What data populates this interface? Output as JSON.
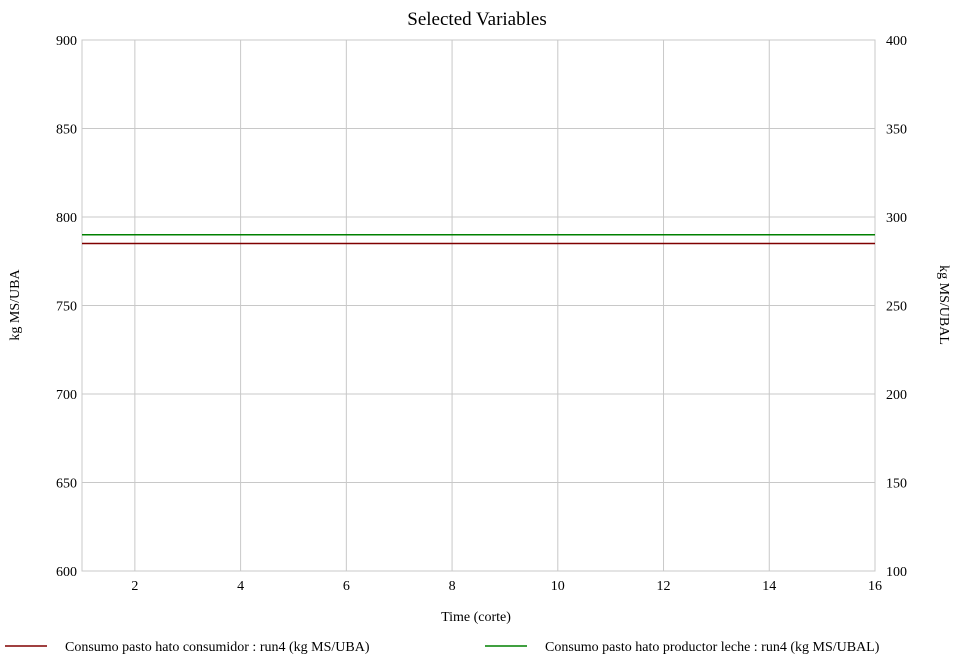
{
  "chart_data": {
    "type": "line",
    "title": "Selected Variables",
    "xlabel": "Time (corte)",
    "ylabel_left": "kg MS/UBA",
    "ylabel_right": "kg MS/UBAL",
    "xlim": [
      1,
      16
    ],
    "ylim_left": [
      600,
      900
    ],
    "ylim_right": [
      100,
      400
    ],
    "x_ticks": [
      2,
      4,
      6,
      8,
      10,
      12,
      14,
      16
    ],
    "y_ticks_left": [
      600,
      650,
      700,
      750,
      800,
      850,
      900
    ],
    "y_ticks_right": [
      100,
      150,
      200,
      250,
      300,
      350,
      400
    ],
    "grid": true,
    "legend_position": "bottom",
    "series": [
      {
        "name": "Consumo pasto hato consumidor : run4 (kg MS/UBA)",
        "axis": "left",
        "color": "#800000",
        "x": [
          1,
          16
        ],
        "y": [
          785,
          785
        ]
      },
      {
        "name": "Consumo pasto hato productor leche : run4 (kg MS/UBAL)",
        "axis": "right",
        "color": "#008000",
        "x": [
          1,
          16
        ],
        "y": [
          290,
          290
        ]
      }
    ]
  }
}
